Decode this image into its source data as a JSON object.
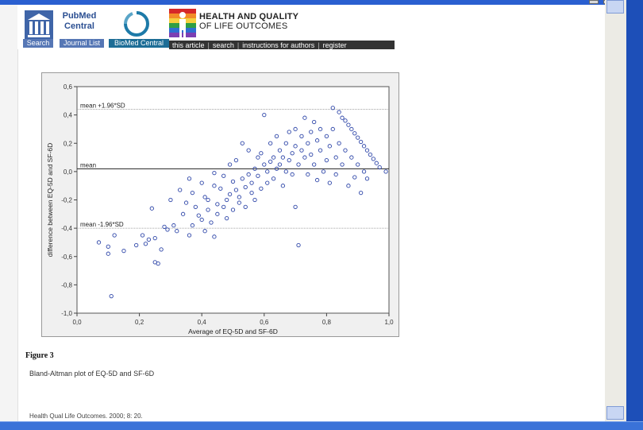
{
  "pmc": {
    "name": "PubMed Central",
    "search_label": "Search",
    "journal_label": "Journal List"
  },
  "bmc": {
    "name": "BioMed Central"
  },
  "journal": {
    "title_line1": "HEALTH AND QUALITY",
    "title_line2": "OF LIFE OUTCOMES"
  },
  "journal_nav": {
    "items": [
      "this article",
      "search",
      "instructions for authors",
      "register"
    ]
  },
  "figure_label": "Figure 3",
  "figure_caption": "Bland-Altman plot of EQ-5D and SF-6D",
  "citation": "Health Qual Life Outcomes. 2000; 8: 20.",
  "colors": {
    "points": "#2d45a8",
    "frame_blue": "#1d4fb8",
    "plot_bg": "#ffffff",
    "figure_bg": "#f0f0f0"
  },
  "chart_data": {
    "type": "scatter",
    "xlabel": "Average of EQ-5D and SF-6D",
    "ylabel": "difference between EQ-5D and SF-6D",
    "xlim": [
      0.0,
      1.0
    ],
    "ylim": [
      -1.0,
      0.6
    ],
    "x_ticks": [
      "0,0",
      "0,2",
      "0,4",
      "0,6",
      "0,8",
      "1,0"
    ],
    "y_ticks": [
      "0,6",
      "0,4",
      "0,2",
      "0,0",
      "-0,2",
      "-0,4",
      "-0,6",
      "-0,8",
      "-1,0"
    ],
    "reference_lines": [
      {
        "label": "mean +1.96*SD",
        "y": 0.44
      },
      {
        "label": "mean",
        "y": 0.02
      },
      {
        "label": "mean -1.96*SD",
        "y": -0.4
      }
    ],
    "grid": false,
    "points": [
      [
        0.07,
        -0.5
      ],
      [
        0.1,
        -0.53
      ],
      [
        0.1,
        -0.58
      ],
      [
        0.12,
        -0.45
      ],
      [
        0.15,
        -0.56
      ],
      [
        0.11,
        -0.88
      ],
      [
        0.19,
        -0.52
      ],
      [
        0.21,
        -0.45
      ],
      [
        0.22,
        -0.51
      ],
      [
        0.23,
        -0.48
      ],
      [
        0.25,
        -0.47
      ],
      [
        0.24,
        -0.26
      ],
      [
        0.25,
        -0.64
      ],
      [
        0.26,
        -0.65
      ],
      [
        0.27,
        -0.55
      ],
      [
        0.28,
        -0.39
      ],
      [
        0.29,
        -0.41
      ],
      [
        0.3,
        -0.2
      ],
      [
        0.31,
        -0.38
      ],
      [
        0.32,
        -0.42
      ],
      [
        0.33,
        -0.13
      ],
      [
        0.34,
        -0.3
      ],
      [
        0.35,
        -0.22
      ],
      [
        0.36,
        -0.45
      ],
      [
        0.36,
        -0.05
      ],
      [
        0.37,
        -0.15
      ],
      [
        0.37,
        -0.38
      ],
      [
        0.38,
        -0.25
      ],
      [
        0.39,
        -0.31
      ],
      [
        0.4,
        -0.34
      ],
      [
        0.4,
        -0.08
      ],
      [
        0.41,
        -0.18
      ],
      [
        0.41,
        -0.42
      ],
      [
        0.42,
        -0.2
      ],
      [
        0.42,
        -0.27
      ],
      [
        0.43,
        -0.36
      ],
      [
        0.44,
        -0.01
      ],
      [
        0.44,
        -0.1
      ],
      [
        0.44,
        -0.46
      ],
      [
        0.45,
        -0.23
      ],
      [
        0.45,
        -0.3
      ],
      [
        0.46,
        -0.12
      ],
      [
        0.47,
        -0.03
      ],
      [
        0.47,
        -0.25
      ],
      [
        0.48,
        -0.2
      ],
      [
        0.48,
        -0.33
      ],
      [
        0.49,
        0.05
      ],
      [
        0.49,
        -0.16
      ],
      [
        0.5,
        -0.07
      ],
      [
        0.5,
        -0.27
      ],
      [
        0.51,
        0.08
      ],
      [
        0.51,
        -0.13
      ],
      [
        0.52,
        -0.18
      ],
      [
        0.52,
        -0.22
      ],
      [
        0.53,
        0.2
      ],
      [
        0.53,
        -0.05
      ],
      [
        0.54,
        -0.11
      ],
      [
        0.54,
        -0.25
      ],
      [
        0.55,
        0.15
      ],
      [
        0.55,
        -0.02
      ],
      [
        0.56,
        -0.08
      ],
      [
        0.56,
        -0.15
      ],
      [
        0.57,
        0.02
      ],
      [
        0.57,
        -0.2
      ],
      [
        0.58,
        0.1
      ],
      [
        0.58,
        -0.03
      ],
      [
        0.59,
        0.13
      ],
      [
        0.59,
        -0.12
      ],
      [
        0.6,
        0.4
      ],
      [
        0.6,
        0.05
      ],
      [
        0.61,
        -0.08
      ],
      [
        0.61,
        0.0
      ],
      [
        0.62,
        0.2
      ],
      [
        0.62,
        0.07
      ],
      [
        0.63,
        0.1
      ],
      [
        0.63,
        -0.05
      ],
      [
        0.64,
        0.25
      ],
      [
        0.64,
        0.02
      ],
      [
        0.65,
        0.15
      ],
      [
        0.65,
        0.05
      ],
      [
        0.66,
        -0.1
      ],
      [
        0.66,
        0.1
      ],
      [
        0.67,
        0.2
      ],
      [
        0.67,
        0.0
      ],
      [
        0.68,
        0.28
      ],
      [
        0.68,
        0.08
      ],
      [
        0.69,
        0.13
      ],
      [
        0.69,
        -0.02
      ],
      [
        0.7,
        0.3
      ],
      [
        0.7,
        0.18
      ],
      [
        0.7,
        -0.25
      ],
      [
        0.71,
        0.05
      ],
      [
        0.71,
        -0.52
      ],
      [
        0.72,
        0.25
      ],
      [
        0.72,
        0.15
      ],
      [
        0.73,
        0.38
      ],
      [
        0.73,
        0.1
      ],
      [
        0.74,
        0.2
      ],
      [
        0.74,
        -0.02
      ],
      [
        0.75,
        0.28
      ],
      [
        0.75,
        0.12
      ],
      [
        0.76,
        0.35
      ],
      [
        0.76,
        0.05
      ],
      [
        0.77,
        0.22
      ],
      [
        0.77,
        -0.06
      ],
      [
        0.78,
        0.3
      ],
      [
        0.78,
        0.15
      ],
      [
        0.79,
        0.0
      ],
      [
        0.8,
        0.25
      ],
      [
        0.8,
        0.08
      ],
      [
        0.81,
        -0.08
      ],
      [
        0.81,
        0.18
      ],
      [
        0.82,
        0.45
      ],
      [
        0.82,
        0.3
      ],
      [
        0.83,
        0.1
      ],
      [
        0.83,
        -0.02
      ],
      [
        0.84,
        0.42
      ],
      [
        0.84,
        0.2
      ],
      [
        0.85,
        0.38
      ],
      [
        0.85,
        0.05
      ],
      [
        0.86,
        0.36
      ],
      [
        0.86,
        0.15
      ],
      [
        0.87,
        0.33
      ],
      [
        0.87,
        -0.1
      ],
      [
        0.88,
        0.3
      ],
      [
        0.88,
        0.1
      ],
      [
        0.89,
        0.27
      ],
      [
        0.89,
        -0.04
      ],
      [
        0.9,
        0.24
      ],
      [
        0.9,
        0.05
      ],
      [
        0.91,
        0.21
      ],
      [
        0.91,
        -0.15
      ],
      [
        0.92,
        0.18
      ],
      [
        0.92,
        0.0
      ],
      [
        0.93,
        0.15
      ],
      [
        0.93,
        -0.05
      ],
      [
        0.94,
        0.12
      ],
      [
        0.95,
        0.09
      ],
      [
        0.96,
        0.06
      ],
      [
        0.97,
        0.03
      ],
      [
        0.99,
        0.0
      ]
    ]
  }
}
